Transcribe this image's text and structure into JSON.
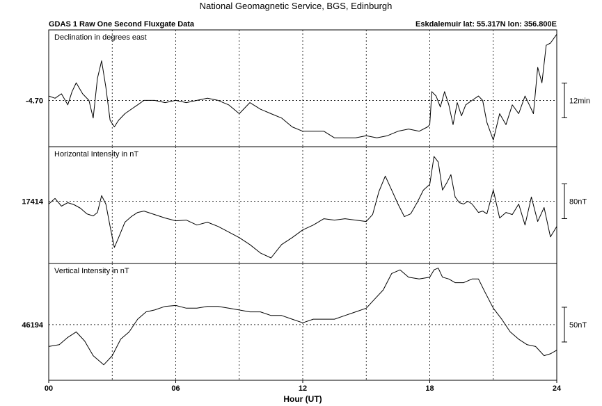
{
  "header": {
    "title": "National Geomagnetic Service, BGS, Edinburgh",
    "left": "GDAS 1 Raw One Second Fluxgate Data",
    "right": "Eskdalemuir  lat: 55.317N lon: 356.800E"
  },
  "chart_data": [
    {
      "type": "line",
      "title": "Declination in degrees east",
      "xlabel": "Hour (UT)",
      "xlim": [
        0,
        24
      ],
      "xticks": [
        "00",
        "06",
        "12",
        "18",
        "24"
      ],
      "grid": true,
      "ref_label": "-4.70",
      "scale_label": "12min",
      "series": [
        {
          "x": [
            0,
            0.3,
            0.6,
            0.9,
            1.1,
            1.3,
            1.6,
            1.9,
            2.1,
            2.3,
            2.5,
            2.7,
            2.9,
            3.1,
            3.3,
            3.6,
            3.9,
            4.2,
            4.5,
            5,
            5.5,
            6,
            6.5,
            7,
            7.5,
            8,
            8.5,
            9,
            9.5,
            10,
            10.5,
            11,
            11.5,
            12,
            12.5,
            13,
            13.5,
            14,
            14.5,
            15,
            15.5,
            16,
            16.5,
            17,
            17.5,
            17.9,
            18,
            18.1,
            18.3,
            18.5,
            18.7,
            18.9,
            19.1,
            19.3,
            19.5,
            19.7,
            20,
            20.3,
            20.5,
            20.7,
            21,
            21.3,
            21.6,
            21.9,
            22.2,
            22.5,
            22.7,
            22.9,
            23.1,
            23.3,
            23.5,
            23.7,
            24
          ],
          "values": [
            -4.68,
            -4.69,
            -4.67,
            -4.72,
            -4.66,
            -4.62,
            -4.67,
            -4.7,
            -4.78,
            -4.6,
            -4.52,
            -4.64,
            -4.79,
            -4.82,
            -4.79,
            -4.76,
            -4.74,
            -4.72,
            -4.7,
            -4.7,
            -4.71,
            -4.7,
            -4.71,
            -4.7,
            -4.69,
            -4.7,
            -4.72,
            -4.76,
            -4.71,
            -4.74,
            -4.76,
            -4.78,
            -4.82,
            -4.84,
            -4.84,
            -4.84,
            -4.87,
            -4.87,
            -4.87,
            -4.86,
            -4.87,
            -4.86,
            -4.84,
            -4.83,
            -4.84,
            -4.82,
            -4.81,
            -4.66,
            -4.68,
            -4.73,
            -4.66,
            -4.72,
            -4.81,
            -4.71,
            -4.77,
            -4.72,
            -4.7,
            -4.68,
            -4.7,
            -4.8,
            -4.88,
            -4.76,
            -4.81,
            -4.72,
            -4.76,
            -4.68,
            -4.72,
            -4.76,
            -4.55,
            -4.62,
            -4.45,
            -4.44,
            -4.4
          ]
        }
      ],
      "ylim": [
        -4.91,
        -4.38
      ]
    },
    {
      "type": "line",
      "title": "Horizontal Intensity in nT",
      "xlabel": "Hour (UT)",
      "xlim": [
        0,
        24
      ],
      "xticks": [
        "00",
        "06",
        "12",
        "18",
        "24"
      ],
      "grid": true,
      "ref_label": "17414",
      "scale_label": "80nT",
      "series": [
        {
          "x": [
            0,
            0.3,
            0.6,
            0.9,
            1.2,
            1.5,
            1.8,
            2.1,
            2.3,
            2.5,
            2.7,
            2.9,
            3.1,
            3.3,
            3.6,
            3.9,
            4.2,
            4.5,
            5,
            5.5,
            6,
            6.5,
            7,
            7.5,
            8,
            8.5,
            9,
            9.5,
            10,
            10.5,
            11,
            11.5,
            12,
            12.5,
            13,
            13.5,
            14,
            14.5,
            15,
            15.3,
            15.6,
            15.9,
            16.2,
            16.5,
            16.8,
            17.1,
            17.4,
            17.7,
            18,
            18.2,
            18.4,
            18.6,
            18.8,
            19,
            19.2,
            19.4,
            19.6,
            19.8,
            20,
            20.3,
            20.5,
            20.7,
            21,
            21.3,
            21.6,
            21.9,
            22.2,
            22.5,
            22.8,
            23.1,
            23.4,
            23.7,
            24
          ],
          "values": [
            17410,
            17418,
            17407,
            17412,
            17409,
            17404,
            17396,
            17393,
            17398,
            17422,
            17410,
            17378,
            17348,
            17362,
            17384,
            17392,
            17398,
            17400,
            17395,
            17390,
            17386,
            17387,
            17380,
            17384,
            17378,
            17370,
            17362,
            17352,
            17340,
            17333,
            17352,
            17362,
            17373,
            17380,
            17389,
            17387,
            17389,
            17387,
            17385,
            17395,
            17428,
            17450,
            17430,
            17410,
            17392,
            17396,
            17412,
            17430,
            17438,
            17478,
            17470,
            17430,
            17440,
            17452,
            17420,
            17412,
            17410,
            17414,
            17410,
            17398,
            17400,
            17396,
            17430,
            17390,
            17398,
            17395,
            17410,
            17380,
            17420,
            17385,
            17405,
            17363,
            17378
          ]
        }
      ],
      "ylim": [
        17325,
        17492
      ]
    },
    {
      "type": "line",
      "title": "Vertical Intensity in nT",
      "xlabel": "Hour (UT)",
      "xlim": [
        0,
        24
      ],
      "xticks": [
        "00",
        "06",
        "12",
        "18",
        "24"
      ],
      "grid": true,
      "ref_label": "46194",
      "scale_label": "50nT",
      "series": [
        {
          "x": [
            0,
            0.5,
            0.9,
            1.3,
            1.7,
            2.1,
            2.6,
            3.0,
            3.4,
            3.8,
            4.2,
            4.6,
            5.0,
            5.5,
            6.0,
            6.5,
            7.0,
            7.5,
            8.0,
            8.5,
            9.0,
            9.5,
            10.0,
            10.5,
            11.0,
            11.5,
            12.0,
            12.5,
            13.0,
            13.5,
            14.0,
            14.5,
            15.0,
            15.4,
            15.8,
            16.2,
            16.6,
            17.0,
            17.5,
            18.0,
            18.2,
            18.4,
            18.6,
            18.9,
            19.2,
            19.6,
            20.0,
            20.3,
            20.6,
            21.0,
            21.4,
            21.8,
            22.2,
            22.6,
            23.0,
            23.4,
            23.7,
            24
          ],
          "values": [
            46170,
            46172,
            46180,
            46186,
            46176,
            46160,
            46150,
            46160,
            46178,
            46186,
            46200,
            46208,
            46210,
            46214,
            46215,
            46212,
            46212,
            46214,
            46214,
            46212,
            46210,
            46208,
            46208,
            46204,
            46204,
            46200,
            46196,
            46200,
            46200,
            46200,
            46204,
            46208,
            46212,
            46222,
            46232,
            46250,
            46254,
            46246,
            46244,
            46246,
            46254,
            46256,
            46246,
            46244,
            46240,
            46240,
            46244,
            46244,
            46230,
            46212,
            46200,
            46186,
            46178,
            46172,
            46170,
            46160,
            46162,
            46166
          ]
        }
      ],
      "ylim": [
        46133,
        46261
      ]
    }
  ]
}
